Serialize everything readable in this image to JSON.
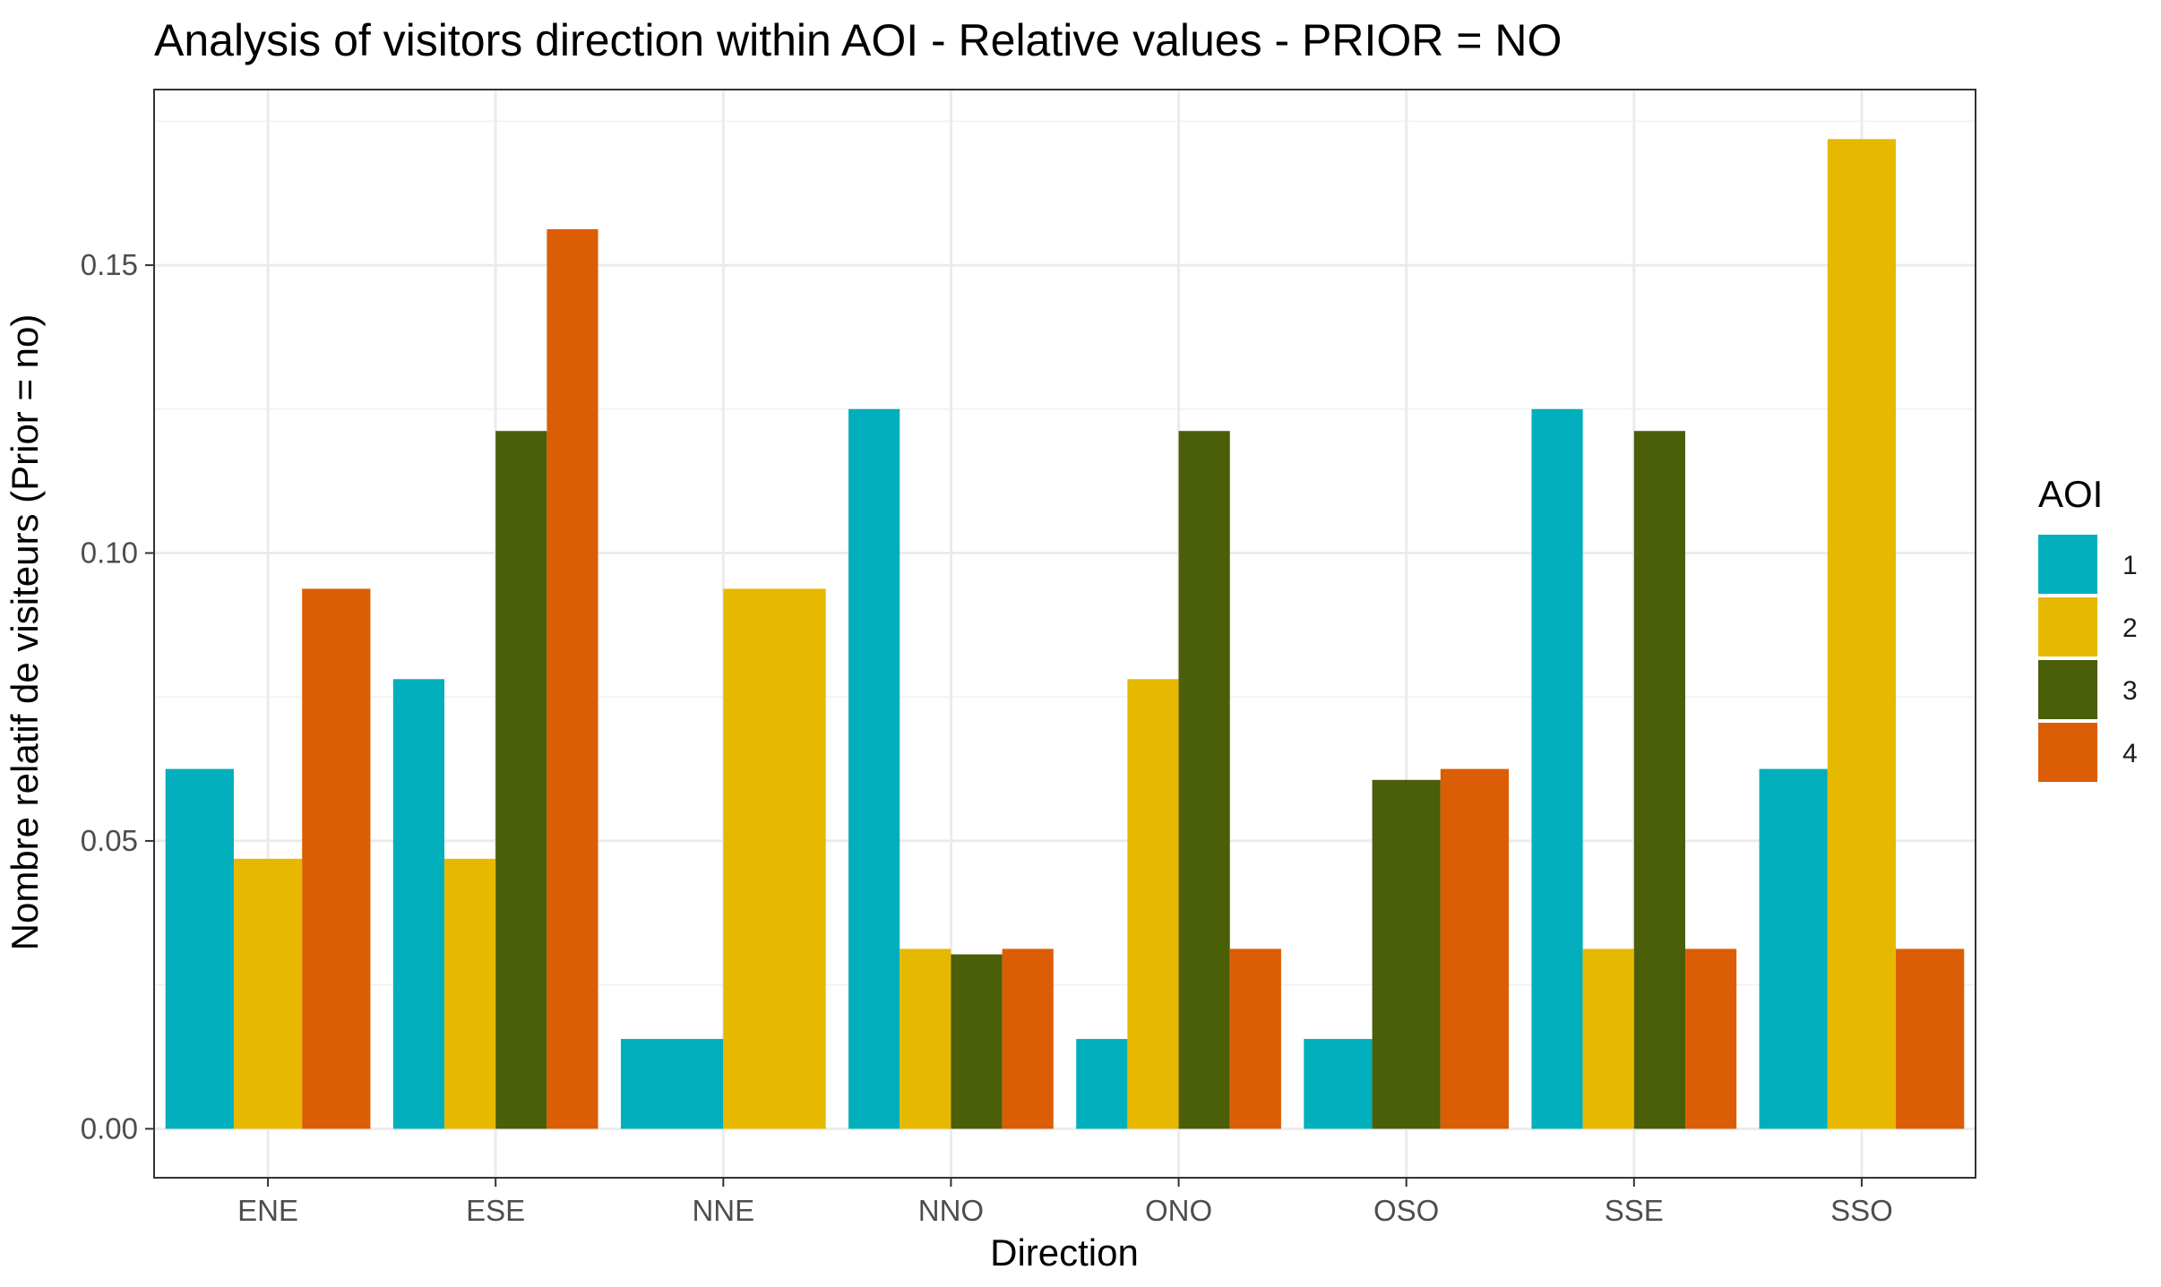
{
  "chart_data": {
    "type": "bar",
    "title": "Analysis of visitors direction within AOI - Relative values - PRIOR = NO",
    "xlabel": "Direction",
    "ylabel": "Nombre relatif de visiteurs (Prior = no)",
    "categories": [
      "ENE",
      "ESE",
      "NNE",
      "NNO",
      "ONO",
      "OSO",
      "SSE",
      "SSO"
    ],
    "ylim": [
      -0.0085,
      0.1805
    ],
    "yticks": [
      0.0,
      0.05,
      0.1,
      0.15
    ],
    "ytick_labels": [
      "0.00",
      "0.05",
      "0.10",
      "0.15"
    ],
    "grid": true,
    "legend": {
      "title": "AOI",
      "position": "right"
    },
    "series": [
      {
        "name": "1",
        "color": "#00AFBB",
        "values": [
          0.0625,
          0.0781,
          0.0156,
          0.125,
          0.0156,
          0.0156,
          0.125,
          0.0625
        ]
      },
      {
        "name": "2",
        "color": "#E7B800",
        "values": [
          0.0469,
          0.0469,
          0.0938,
          0.03125,
          0.0781,
          null,
          0.03125,
          0.1719
        ]
      },
      {
        "name": "3",
        "color": "#4B5E08",
        "values": [
          null,
          0.1212,
          null,
          0.0303,
          0.1212,
          0.0606,
          0.1212,
          null
        ]
      },
      {
        "name": "4",
        "color": "#DB5E06",
        "values": [
          0.0938,
          0.15625,
          null,
          0.03125,
          0.03125,
          0.0625,
          0.03125,
          0.03125
        ]
      }
    ]
  }
}
